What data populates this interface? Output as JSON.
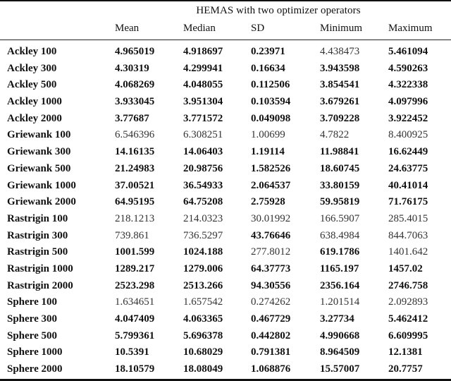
{
  "table": {
    "caption": "HEMAS with two optimizer operators",
    "columns": [
      "Mean",
      "Median",
      "SD",
      "Minimum",
      "Maximum"
    ],
    "rows": [
      {
        "label": "Ackley 100",
        "values": [
          "4.965019",
          "4.918697",
          "0.23971",
          "4.438473",
          "5.461094"
        ],
        "bold": [
          true,
          true,
          true,
          false,
          true
        ]
      },
      {
        "label": "Ackley 300",
        "values": [
          "4.30319",
          "4.299941",
          "0.16634",
          "3.943598",
          "4.590263"
        ],
        "bold": [
          true,
          true,
          true,
          true,
          true
        ]
      },
      {
        "label": "Ackley 500",
        "values": [
          "4.068269",
          "4.048055",
          "0.112506",
          "3.854541",
          "4.322338"
        ],
        "bold": [
          true,
          true,
          true,
          true,
          true
        ]
      },
      {
        "label": "Ackley 1000",
        "values": [
          "3.933045",
          "3.951304",
          "0.103594",
          "3.679261",
          "4.097996"
        ],
        "bold": [
          true,
          true,
          true,
          true,
          true
        ]
      },
      {
        "label": "Ackley 2000",
        "values": [
          "3.77687",
          "3.771572",
          "0.049098",
          "3.709228",
          "3.922452"
        ],
        "bold": [
          true,
          true,
          true,
          true,
          true
        ]
      },
      {
        "label": "Griewank 100",
        "values": [
          "6.546396",
          "6.308251",
          "1.00699",
          "4.7822",
          "8.400925"
        ],
        "bold": [
          false,
          false,
          false,
          false,
          false
        ]
      },
      {
        "label": "Griewank 300",
        "values": [
          "14.16135",
          "14.06403",
          "1.19114",
          "11.98841",
          "16.62449"
        ],
        "bold": [
          true,
          true,
          true,
          true,
          true
        ]
      },
      {
        "label": "Griewank 500",
        "values": [
          "21.24983",
          "20.98756",
          "1.582526",
          "18.60745",
          "24.63775"
        ],
        "bold": [
          true,
          true,
          true,
          true,
          true
        ]
      },
      {
        "label": "Griewank 1000",
        "values": [
          "37.00521",
          "36.54933",
          "2.064537",
          "33.80159",
          "40.41014"
        ],
        "bold": [
          true,
          true,
          true,
          true,
          true
        ]
      },
      {
        "label": "Griewank 2000",
        "values": [
          "64.95195",
          "64.75208",
          "2.75928",
          "59.95819",
          "71.76175"
        ],
        "bold": [
          true,
          true,
          true,
          true,
          true
        ]
      },
      {
        "label": "Rastrigin 100",
        "values": [
          "218.1213",
          "214.0323",
          "30.01992",
          "166.5907",
          "285.4015"
        ],
        "bold": [
          false,
          false,
          false,
          false,
          false
        ]
      },
      {
        "label": "Rastrigin 300",
        "values": [
          "739.861",
          "736.5297",
          "43.76646",
          "638.4984",
          "844.7063"
        ],
        "bold": [
          false,
          false,
          true,
          false,
          false
        ]
      },
      {
        "label": "Rastrigin 500",
        "values": [
          "1001.599",
          "1024.188",
          "277.8012",
          "619.1786",
          "1401.642"
        ],
        "bold": [
          true,
          true,
          false,
          true,
          false
        ]
      },
      {
        "label": "Rastrigin 1000",
        "values": [
          "1289.217",
          "1279.006",
          "64.37773",
          "1165.197",
          "1457.02"
        ],
        "bold": [
          true,
          true,
          true,
          true,
          true
        ]
      },
      {
        "label": "Rastrigin 2000",
        "values": [
          "2523.298",
          "2513.266",
          "94.30556",
          "2356.164",
          "2746.758"
        ],
        "bold": [
          true,
          true,
          true,
          true,
          true
        ]
      },
      {
        "label": "Sphere 100",
        "values": [
          "1.634651",
          "1.657542",
          "0.274262",
          "1.201514",
          "2.092893"
        ],
        "bold": [
          false,
          false,
          false,
          false,
          false
        ]
      },
      {
        "label": "Sphere 300",
        "values": [
          "4.047409",
          "4.063365",
          "0.467729",
          "3.27734",
          "5.462412"
        ],
        "bold": [
          true,
          true,
          true,
          true,
          true
        ]
      },
      {
        "label": "Sphere 500",
        "values": [
          "5.799361",
          "5.696378",
          "0.442802",
          "4.990668",
          "6.609995"
        ],
        "bold": [
          true,
          true,
          true,
          true,
          true
        ]
      },
      {
        "label": "Sphere 1000",
        "values": [
          "10.5391",
          "10.68029",
          "0.791381",
          "8.964509",
          "12.1381"
        ],
        "bold": [
          true,
          true,
          true,
          true,
          true
        ]
      },
      {
        "label": "Sphere 2000",
        "values": [
          "18.10579",
          "18.08049",
          "1.068876",
          "15.57007",
          "20.7757"
        ],
        "bold": [
          true,
          true,
          true,
          true,
          true
        ]
      }
    ]
  }
}
